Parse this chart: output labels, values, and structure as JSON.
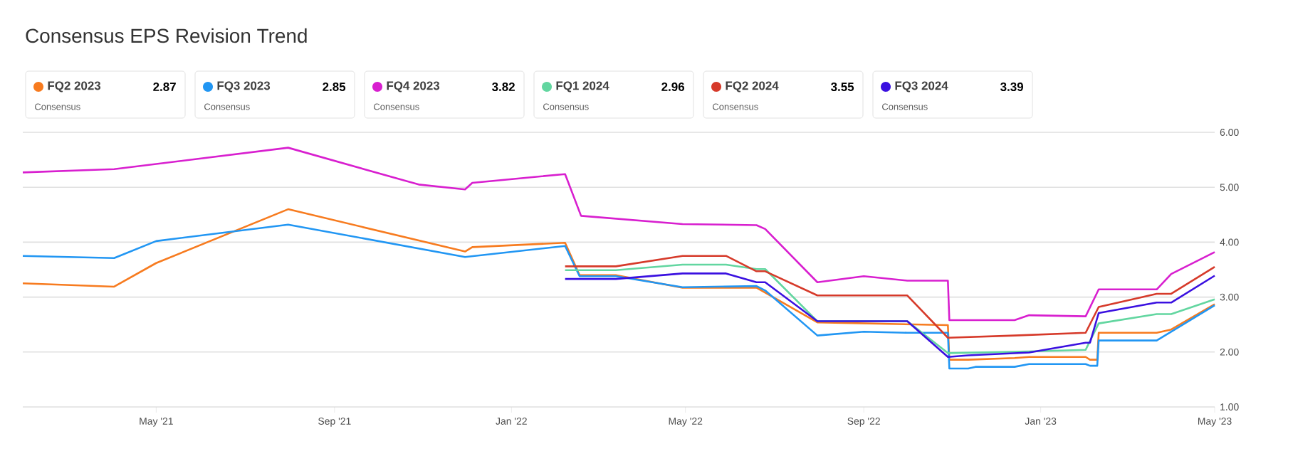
{
  "chart_data": {
    "type": "line",
    "title": "Consensus EPS Revision Trend",
    "xlim": [
      "2021-01-29",
      "2023-05-01"
    ],
    "xticks": [
      {
        "value": "2021-05-01",
        "label": "May '21"
      },
      {
        "value": "2021-09-01",
        "label": "Sep '21"
      },
      {
        "value": "2022-01-01",
        "label": "Jan '22"
      },
      {
        "value": "2022-05-01",
        "label": "May '22"
      },
      {
        "value": "2022-09-01",
        "label": "Sep '22"
      },
      {
        "value": "2023-01-01",
        "label": "Jan '23"
      },
      {
        "value": "2023-05-01",
        "label": "May '23"
      }
    ],
    "ylim": [
      1,
      6
    ],
    "yticks": [
      {
        "value": 1,
        "label": "1.00"
      },
      {
        "value": 2,
        "label": "2.00"
      },
      {
        "value": 3,
        "label": "3.00"
      },
      {
        "value": 4,
        "label": "4.00"
      },
      {
        "value": 5,
        "label": "5.00"
      },
      {
        "value": 6,
        "label": "6.00"
      }
    ],
    "grid": "y",
    "legend": "top",
    "marker": "none",
    "line_style": "solid",
    "annotations": [
      "2.87",
      "Consensus",
      "2.85",
      "Consensus",
      "3.82",
      "Consensus",
      "2.96",
      "Consensus",
      "3.55",
      "Consensus",
      "3.39",
      "Consensus"
    ],
    "series": [
      {
        "name": "FQ2 2023",
        "color": "#f77b1f",
        "x": [
          "2021-01-29",
          "2021-04-02",
          "2021-05-01",
          "2021-07-31",
          "2021-11-30",
          "2021-12-05",
          "2022-02-07",
          "2022-02-17",
          "2022-03-14",
          "2022-04-29",
          "2022-06-19",
          "2022-07-31",
          "2022-10-29",
          "2022-10-30",
          "2022-11-12",
          "2022-12-14",
          "2022-12-24",
          "2023-02-01",
          "2023-02-04",
          "2023-02-09",
          "2023-02-10",
          "2023-03-22",
          "2023-04-01",
          "2023-05-01"
        ],
        "values": [
          3.25,
          3.19,
          3.62,
          4.6,
          3.83,
          3.91,
          3.99,
          3.4,
          3.4,
          3.17,
          3.17,
          2.54,
          2.49,
          1.86,
          1.86,
          1.89,
          1.91,
          1.91,
          1.86,
          1.86,
          2.35,
          2.35,
          2.41,
          2.87
        ]
      },
      {
        "name": "FQ3 2023",
        "color": "#2196f3",
        "x": [
          "2021-01-29",
          "2021-04-02",
          "2021-05-01",
          "2021-07-31",
          "2021-11-30",
          "2022-02-07",
          "2022-02-17",
          "2022-03-14",
          "2022-04-29",
          "2022-06-19",
          "2022-06-25",
          "2022-07-31",
          "2022-09-01",
          "2022-10-01",
          "2022-10-29",
          "2022-10-30",
          "2022-11-12",
          "2022-11-17",
          "2022-12-14",
          "2022-12-24",
          "2023-02-01",
          "2023-02-04",
          "2023-02-09",
          "2023-02-10",
          "2023-03-22",
          "2023-05-01"
        ],
        "values": [
          3.75,
          3.71,
          4.02,
          4.32,
          3.73,
          3.93,
          3.38,
          3.38,
          3.18,
          3.2,
          3.12,
          2.3,
          2.37,
          2.35,
          2.35,
          1.7,
          1.7,
          1.73,
          1.73,
          1.78,
          1.78,
          1.75,
          1.75,
          2.21,
          2.21,
          2.85
        ]
      },
      {
        "name": "FQ4 2023",
        "color": "#d81fcf",
        "x": [
          "2021-01-29",
          "2021-04-02",
          "2021-07-31",
          "2021-10-29",
          "2021-11-30",
          "2021-12-05",
          "2022-02-07",
          "2022-02-18",
          "2022-04-29",
          "2022-06-19",
          "2022-06-25",
          "2022-07-31",
          "2022-09-01",
          "2022-10-01",
          "2022-10-29",
          "2022-10-30",
          "2022-12-14",
          "2022-12-24",
          "2023-02-01",
          "2023-02-10",
          "2023-03-22",
          "2023-04-01",
          "2023-05-01"
        ],
        "values": [
          5.27,
          5.33,
          5.72,
          5.05,
          4.96,
          5.08,
          5.24,
          4.48,
          4.33,
          4.31,
          4.24,
          3.27,
          3.38,
          3.3,
          3.3,
          2.58,
          2.58,
          2.67,
          2.65,
          3.14,
          3.14,
          3.42,
          3.82
        ]
      },
      {
        "name": "FQ1 2024",
        "color": "#62d6a0",
        "x": [
          "2022-02-07",
          "2022-03-14",
          "2022-04-29",
          "2022-05-29",
          "2022-06-19",
          "2022-06-25",
          "2022-07-31",
          "2022-10-01",
          "2022-10-29",
          "2022-12-24",
          "2023-02-01",
          "2023-02-10",
          "2023-03-22",
          "2023-04-01",
          "2023-05-01"
        ],
        "values": [
          3.49,
          3.49,
          3.59,
          3.59,
          3.51,
          3.51,
          2.56,
          2.56,
          1.98,
          2.01,
          2.04,
          2.52,
          2.69,
          2.69,
          2.96
        ]
      },
      {
        "name": "FQ2 2024",
        "color": "#d63a2a",
        "x": [
          "2022-02-07",
          "2022-03-14",
          "2022-04-29",
          "2022-05-29",
          "2022-06-19",
          "2022-06-25",
          "2022-07-31",
          "2022-10-01",
          "2022-10-29",
          "2022-12-14",
          "2023-02-01",
          "2023-02-10",
          "2023-03-22",
          "2023-04-01",
          "2023-05-01"
        ],
        "values": [
          3.56,
          3.56,
          3.75,
          3.75,
          3.47,
          3.47,
          3.03,
          3.03,
          2.26,
          2.3,
          2.35,
          2.82,
          3.06,
          3.06,
          3.55
        ]
      },
      {
        "name": "FQ3 2024",
        "color": "#3a10e0",
        "x": [
          "2022-02-07",
          "2022-03-14",
          "2022-04-29",
          "2022-05-29",
          "2022-06-19",
          "2022-06-25",
          "2022-07-31",
          "2022-10-01",
          "2022-10-29",
          "2022-11-12",
          "2022-12-24",
          "2023-02-01",
          "2023-02-04",
          "2023-02-10",
          "2023-03-22",
          "2023-04-01",
          "2023-05-01"
        ],
        "values": [
          3.33,
          3.33,
          3.43,
          3.43,
          3.27,
          3.27,
          2.56,
          2.56,
          1.91,
          1.94,
          1.99,
          2.17,
          2.17,
          2.71,
          2.9,
          2.9,
          3.39
        ]
      }
    ]
  }
}
